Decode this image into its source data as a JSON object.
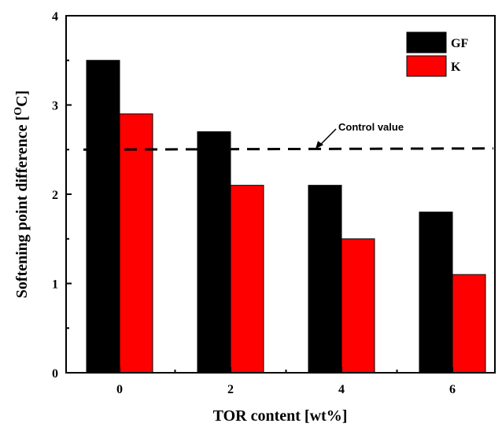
{
  "chart_data": {
    "type": "bar",
    "categories": [
      "0",
      "2",
      "4",
      "6"
    ],
    "series": [
      {
        "name": "GF",
        "color": "#000000",
        "values": [
          3.5,
          2.7,
          2.1,
          1.8
        ]
      },
      {
        "name": "K",
        "color": "#ff0000",
        "values": [
          2.9,
          2.1,
          1.5,
          1.1
        ]
      }
    ],
    "xlabel": "TOR content [wt%]",
    "ylabel_main": "Softening point difference [",
    "ylabel_sup": "O",
    "ylabel_tail": "C]",
    "ylim": [
      0,
      4
    ],
    "yticks": [
      "0",
      "1",
      "2",
      "3",
      "4"
    ],
    "grid": false,
    "legend": "top-right",
    "reference_line": {
      "label": "Control value",
      "value": 2.5,
      "style": "dashed"
    }
  }
}
